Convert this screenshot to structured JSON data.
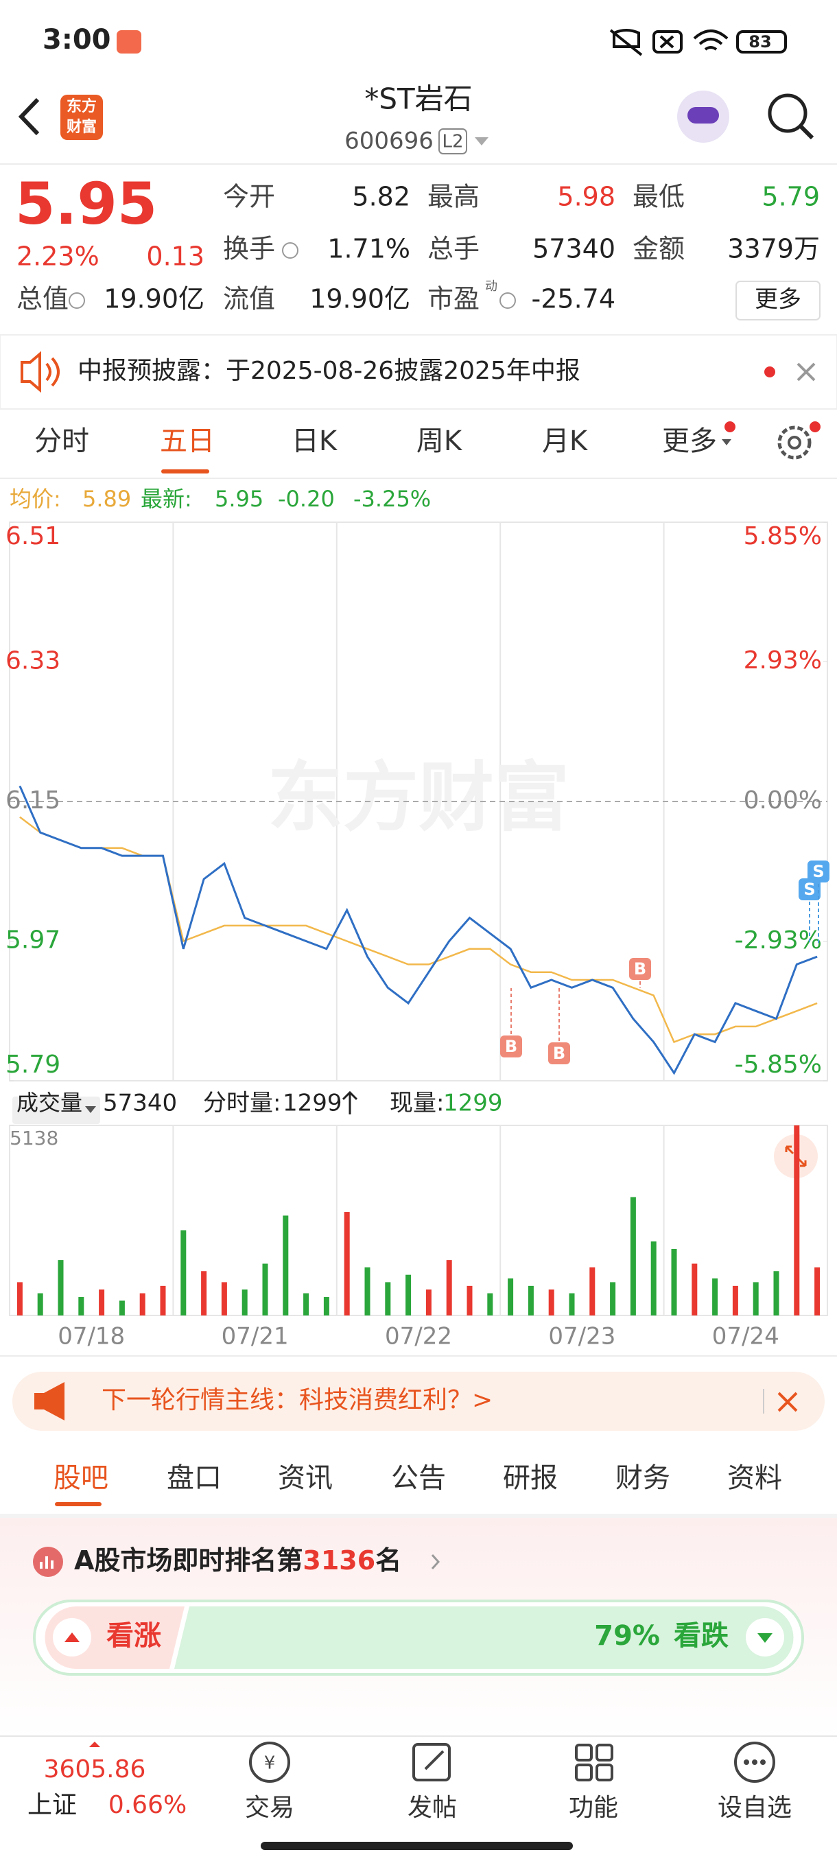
{
  "status_bar": {
    "time": "3:00",
    "battery": "83"
  },
  "header": {
    "logo": [
      "东方",
      "财富"
    ],
    "title": "*ST岩石",
    "code": "600696",
    "level": "L2"
  },
  "quote": {
    "price": "5.95",
    "change_pct": "2.23%",
    "change": "0.13",
    "stats": [
      [
        {
          "label": "今开",
          "value": "5.82"
        },
        {
          "label": "最高",
          "value": "5.98"
        },
        {
          "label": "最低",
          "value": "5.79"
        }
      ],
      [
        {
          "label": "换手",
          "value": "1.71%"
        },
        {
          "label": "总手",
          "value": "57340"
        },
        {
          "label": "金额",
          "value": "3379万"
        }
      ],
      [
        {
          "label": "总值",
          "value": "19.90亿"
        },
        {
          "label": "流值",
          "value": "19.90亿"
        },
        {
          "label": "市盈",
          "value": "-25.74"
        }
      ]
    ],
    "pe_note": "动",
    "more_button": "更多"
  },
  "notice": "中报预披露：于2025-08-26披露2025年中报",
  "chart_tabs": [
    "分时",
    "五日",
    "日K",
    "周K",
    "月K",
    "更多"
  ],
  "legend": {
    "avg_label": "均价:",
    "avg": "5.89",
    "last_label": "最新:",
    "last": "5.95",
    "change": "-0.20",
    "change_pct": "-3.25%"
  },
  "watermark": "东方财富",
  "volume_header": {
    "label": "成交量",
    "total": "57340",
    "tick_label": "分时量:",
    "tick_volume": "1299",
    "current_label": "现量:",
    "current": "1299"
  },
  "chart_data": [
    {
      "type": "line",
      "ylim": [
        5.79,
        6.51
      ],
      "yticks": [
        6.51,
        6.33,
        6.15,
        5.97,
        5.79
      ],
      "y2lim": [
        -5.85,
        5.85
      ],
      "y2ticks": [
        {
          "value": 5.85,
          "label": "5.85%"
        },
        {
          "value": 2.93,
          "label": "2.93%"
        },
        {
          "value": 0,
          "label": "0.00%"
        },
        {
          "value": -2.93,
          "label": "-2.93%"
        },
        {
          "value": -5.85,
          "label": "-5.85%"
        }
      ],
      "series": [
        {
          "color": "#2f6fc4",
          "values": [
            6.17,
            6.11,
            6.1,
            6.09,
            6.09,
            6.08,
            6.08,
            6.08,
            5.96,
            6.05,
            6.07,
            6.0,
            5.99,
            5.98,
            5.97,
            5.96,
            6.01,
            5.95,
            5.91,
            5.89,
            5.93,
            5.97,
            6.0,
            5.98,
            5.96,
            5.91,
            5.92,
            5.91,
            5.92,
            5.91,
            5.87,
            5.84,
            5.8,
            5.85,
            5.84,
            5.89,
            5.88,
            5.87,
            5.94,
            5.95
          ]
        },
        {
          "color": "#f2b84b",
          "values": [
            6.13,
            6.11,
            6.1,
            6.09,
            6.09,
            6.09,
            6.08,
            6.08,
            5.97,
            5.98,
            5.99,
            5.99,
            5.99,
            5.99,
            5.99,
            5.98,
            5.97,
            5.96,
            5.95,
            5.94,
            5.94,
            5.95,
            5.96,
            5.96,
            5.94,
            5.93,
            5.93,
            5.92,
            5.92,
            5.92,
            5.91,
            5.9,
            5.84,
            5.85,
            5.85,
            5.86,
            5.86,
            5.87,
            5.88,
            5.89
          ]
        }
      ],
      "markers": [
        "B",
        "B",
        "B",
        "S",
        "S"
      ]
    },
    {
      "type": "bar",
      "categories": [
        null,
        null,
        null,
        null,
        "07/18",
        null,
        null,
        null,
        null,
        null,
        null,
        null,
        "07/21",
        null,
        null,
        null,
        null,
        null,
        null,
        null,
        "07/22",
        null,
        null,
        null,
        null,
        null,
        null,
        null,
        "07/23",
        null,
        null,
        null,
        null,
        null,
        null,
        null,
        "07/24",
        null,
        null,
        null
      ],
      "values": [
        900,
        600,
        1500,
        500,
        700,
        400,
        600,
        800,
        2300,
        1200,
        900,
        700,
        1400,
        2700,
        600,
        500,
        2800,
        1300,
        900,
        1100,
        700,
        1500,
        800,
        600,
        1000,
        800,
        700,
        600,
        1300,
        900,
        3200,
        2000,
        1800,
        1400,
        1000,
        800,
        900,
        1200,
        5138,
        1299
      ],
      "ylim": [
        0,
        5138
      ],
      "yticks": [
        5138
      ],
      "up_color": "#e8382f",
      "down_color": "#2aa63a"
    }
  ],
  "banner": "下一轮行情主线：科技消费红利？>",
  "content_tabs": [
    "股吧",
    "盘口",
    "资讯",
    "公告",
    "研报",
    "财务",
    "资料"
  ],
  "ranking": {
    "prefix": "A股市场即时排名第",
    "rank": "3136",
    "suffix": "名"
  },
  "sentiment": {
    "bull": "看涨",
    "bear_pct": "79%",
    "bear": "看跌"
  },
  "bottom_nav": {
    "index_value": "3605.86",
    "index_name": "上证",
    "index_change": "0.66%",
    "items": [
      "交易",
      "发帖",
      "功能",
      "设自选"
    ]
  }
}
